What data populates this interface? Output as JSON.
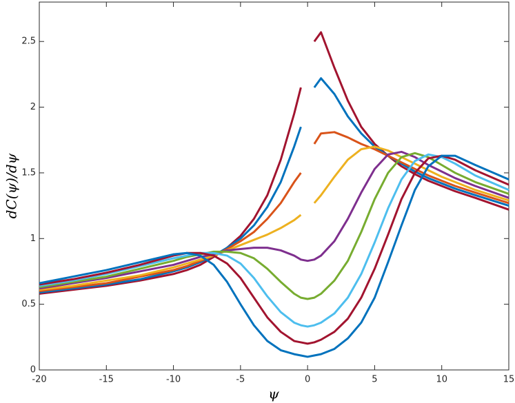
{
  "chart_data": {
    "type": "line",
    "x_label": "ψ",
    "y_label": "dC(ψ)/dψ",
    "x": [
      -20,
      -17.5,
      -15,
      -12.5,
      -10,
      -9,
      -8,
      -7,
      -6,
      -5,
      -4,
      -3,
      -2,
      -1,
      -0.5,
      0,
      0.5,
      1,
      2,
      3,
      4,
      5,
      6,
      7,
      8,
      9,
      10,
      11,
      12.5,
      15
    ],
    "xlim": [
      -20,
      15
    ],
    "xticks": [
      -20,
      -15,
      -10,
      -5,
      0,
      5,
      10,
      15
    ],
    "ylim": [
      0,
      2.8
    ],
    "yticks": [
      0,
      0.5,
      1,
      1.5,
      2,
      2.5
    ],
    "grid": false,
    "series": [
      {
        "color": "#A2142F",
        "values": [
          0.58,
          0.61,
          0.64,
          0.68,
          0.73,
          0.76,
          0.8,
          0.86,
          0.93,
          1.02,
          1.15,
          1.33,
          1.6,
          1.95,
          2.15,
          null,
          2.5,
          2.57,
          2.3,
          2.05,
          1.85,
          1.72,
          1.63,
          1.55,
          1.49,
          1.44,
          1.4,
          1.36,
          1.31,
          1.22
        ]
      },
      {
        "color": "#0072BD",
        "values": [
          0.59,
          0.62,
          0.65,
          0.69,
          0.75,
          0.78,
          0.82,
          0.87,
          0.93,
          1.0,
          1.1,
          1.24,
          1.43,
          1.7,
          1.85,
          null,
          2.15,
          2.22,
          2.1,
          1.93,
          1.8,
          1.7,
          1.63,
          1.57,
          1.51,
          1.46,
          1.42,
          1.38,
          1.33,
          1.25
        ]
      },
      {
        "color": "#D95319",
        "values": [
          0.6,
          0.63,
          0.66,
          0.71,
          0.76,
          0.79,
          0.83,
          0.87,
          0.92,
          0.98,
          1.05,
          1.15,
          1.27,
          1.43,
          1.5,
          null,
          1.72,
          1.8,
          1.81,
          1.77,
          1.72,
          1.68,
          1.63,
          1.58,
          1.53,
          1.48,
          1.44,
          1.4,
          1.35,
          1.27
        ]
      },
      {
        "color": "#EDB120",
        "values": [
          0.61,
          0.64,
          0.68,
          0.72,
          0.78,
          0.81,
          0.84,
          0.87,
          0.91,
          0.95,
          0.99,
          1.03,
          1.08,
          1.14,
          1.18,
          null,
          1.27,
          1.33,
          1.47,
          1.6,
          1.68,
          1.7,
          1.67,
          1.62,
          1.57,
          1.52,
          1.47,
          1.43,
          1.37,
          1.29
        ]
      },
      {
        "color": "#7E2F8E",
        "values": [
          0.62,
          0.66,
          0.7,
          0.75,
          0.8,
          0.83,
          0.86,
          0.88,
          0.91,
          0.92,
          0.93,
          0.93,
          0.91,
          0.87,
          0.84,
          0.83,
          0.84,
          0.87,
          0.98,
          1.15,
          1.35,
          1.53,
          1.64,
          1.66,
          1.62,
          1.56,
          1.51,
          1.46,
          1.4,
          1.31
        ]
      },
      {
        "color": "#77AC30",
        "values": [
          0.63,
          0.67,
          0.71,
          0.77,
          0.83,
          0.86,
          0.88,
          0.9,
          0.9,
          0.89,
          0.85,
          0.77,
          0.67,
          0.58,
          0.55,
          0.54,
          0.55,
          0.58,
          0.68,
          0.83,
          1.05,
          1.3,
          1.5,
          1.62,
          1.65,
          1.62,
          1.56,
          1.5,
          1.43,
          1.34
        ]
      },
      {
        "color": "#4DBEEE",
        "values": [
          0.64,
          0.68,
          0.73,
          0.79,
          0.85,
          0.87,
          0.89,
          0.89,
          0.87,
          0.81,
          0.7,
          0.56,
          0.44,
          0.36,
          0.34,
          0.33,
          0.34,
          0.36,
          0.43,
          0.55,
          0.73,
          0.97,
          1.23,
          1.45,
          1.59,
          1.64,
          1.62,
          1.57,
          1.48,
          1.37
        ]
      },
      {
        "color": "#A2142F",
        "values": [
          0.65,
          0.69,
          0.74,
          0.8,
          0.87,
          0.89,
          0.89,
          0.87,
          0.81,
          0.7,
          0.55,
          0.4,
          0.29,
          0.22,
          0.21,
          0.2,
          0.21,
          0.23,
          0.29,
          0.39,
          0.55,
          0.77,
          1.03,
          1.3,
          1.5,
          1.61,
          1.63,
          1.6,
          1.52,
          1.41
        ]
      },
      {
        "color": "#0072BD",
        "values": [
          0.66,
          0.71,
          0.76,
          0.82,
          0.88,
          0.89,
          0.87,
          0.8,
          0.67,
          0.5,
          0.34,
          0.22,
          0.15,
          0.12,
          0.11,
          0.1,
          0.11,
          0.12,
          0.16,
          0.24,
          0.36,
          0.55,
          0.82,
          1.1,
          1.37,
          1.55,
          1.63,
          1.63,
          1.56,
          1.45
        ]
      }
    ]
  }
}
